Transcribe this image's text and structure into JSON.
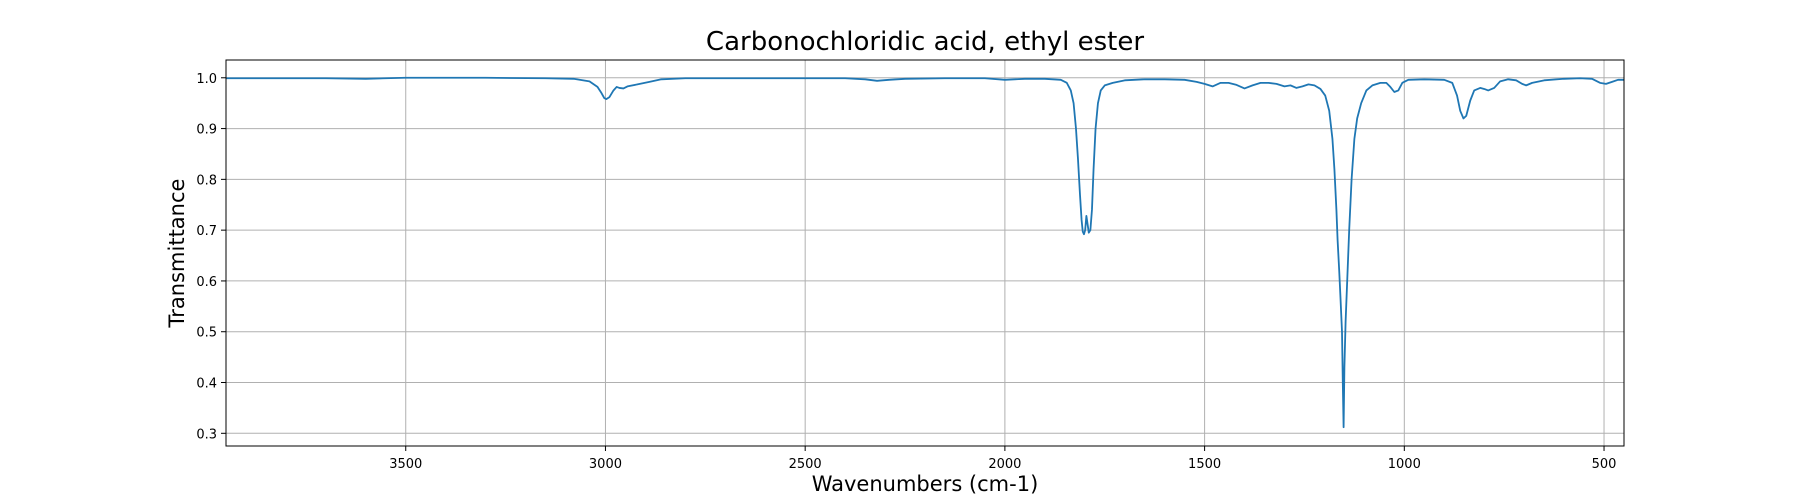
{
  "chart_data": {
    "type": "line",
    "title": "Carbonochloridic acid, ethyl ester",
    "xlabel": "Wavenumbers (cm-1)",
    "ylabel": "Transmittance",
    "x_reversed": true,
    "xlim": [
      3950,
      450
    ],
    "ylim": [
      0.275,
      1.035
    ],
    "x_ticks": [
      3500,
      3000,
      2500,
      2000,
      1500,
      1000,
      500
    ],
    "y_ticks": [
      0.3,
      0.4,
      0.5,
      0.6,
      0.7,
      0.8,
      0.9,
      1.0
    ],
    "x_tick_labels": [
      "3500",
      "3000",
      "2500",
      "2000",
      "1500",
      "1000",
      "500"
    ],
    "y_tick_labels": [
      "0.3",
      "0.4",
      "0.5",
      "0.6",
      "0.7",
      "0.8",
      "0.9",
      "1.0"
    ],
    "grid": true,
    "legend": "none",
    "colors": {
      "series": "#1f77b4"
    },
    "series": [
      {
        "points": [
          [
            3950,
            0.999
          ],
          [
            3800,
            0.999
          ],
          [
            3700,
            0.999
          ],
          [
            3600,
            0.998
          ],
          [
            3550,
            0.999
          ],
          [
            3500,
            1.0
          ],
          [
            3300,
            1.0
          ],
          [
            3150,
            0.999
          ],
          [
            3080,
            0.998
          ],
          [
            3040,
            0.993
          ],
          [
            3020,
            0.982
          ],
          [
            3010,
            0.97
          ],
          [
            3003,
            0.96
          ],
          [
            2998,
            0.958
          ],
          [
            2990,
            0.962
          ],
          [
            2980,
            0.975
          ],
          [
            2972,
            0.982
          ],
          [
            2965,
            0.98
          ],
          [
            2955,
            0.979
          ],
          [
            2945,
            0.983
          ],
          [
            2920,
            0.987
          ],
          [
            2890,
            0.992
          ],
          [
            2860,
            0.997
          ],
          [
            2800,
            0.999
          ],
          [
            2600,
            0.999
          ],
          [
            2400,
            0.999
          ],
          [
            2350,
            0.997
          ],
          [
            2320,
            0.994
          ],
          [
            2290,
            0.996
          ],
          [
            2250,
            0.998
          ],
          [
            2150,
            0.999
          ],
          [
            2050,
            0.999
          ],
          [
            2000,
            0.996
          ],
          [
            1950,
            0.998
          ],
          [
            1900,
            0.998
          ],
          [
            1860,
            0.996
          ],
          [
            1845,
            0.99
          ],
          [
            1835,
            0.975
          ],
          [
            1828,
            0.95
          ],
          [
            1822,
            0.9
          ],
          [
            1817,
            0.84
          ],
          [
            1812,
            0.77
          ],
          [
            1808,
            0.72
          ],
          [
            1805,
            0.697
          ],
          [
            1802,
            0.692
          ],
          [
            1799,
            0.7
          ],
          [
            1796,
            0.728
          ],
          [
            1793,
            0.712
          ],
          [
            1790,
            0.695
          ],
          [
            1786,
            0.7
          ],
          [
            1782,
            0.74
          ],
          [
            1778,
            0.82
          ],
          [
            1773,
            0.9
          ],
          [
            1767,
            0.95
          ],
          [
            1760,
            0.975
          ],
          [
            1750,
            0.985
          ],
          [
            1730,
            0.99
          ],
          [
            1700,
            0.995
          ],
          [
            1650,
            0.997
          ],
          [
            1600,
            0.997
          ],
          [
            1550,
            0.996
          ],
          [
            1520,
            0.992
          ],
          [
            1500,
            0.988
          ],
          [
            1480,
            0.983
          ],
          [
            1460,
            0.99
          ],
          [
            1440,
            0.99
          ],
          [
            1420,
            0.986
          ],
          [
            1400,
            0.979
          ],
          [
            1380,
            0.985
          ],
          [
            1360,
            0.99
          ],
          [
            1340,
            0.99
          ],
          [
            1320,
            0.988
          ],
          [
            1300,
            0.983
          ],
          [
            1285,
            0.985
          ],
          [
            1270,
            0.98
          ],
          [
            1255,
            0.983
          ],
          [
            1240,
            0.987
          ],
          [
            1225,
            0.985
          ],
          [
            1210,
            0.978
          ],
          [
            1198,
            0.965
          ],
          [
            1188,
            0.935
          ],
          [
            1180,
            0.88
          ],
          [
            1175,
            0.82
          ],
          [
            1170,
            0.74
          ],
          [
            1167,
            0.68
          ],
          [
            1163,
            0.62
          ],
          [
            1160,
            0.57
          ],
          [
            1156,
            0.5
          ],
          [
            1154,
            0.4
          ],
          [
            1152,
            0.312
          ],
          [
            1150,
            0.43
          ],
          [
            1147,
            0.52
          ],
          [
            1143,
            0.6
          ],
          [
            1138,
            0.7
          ],
          [
            1132,
            0.8
          ],
          [
            1125,
            0.88
          ],
          [
            1118,
            0.92
          ],
          [
            1108,
            0.95
          ],
          [
            1095,
            0.975
          ],
          [
            1080,
            0.985
          ],
          [
            1060,
            0.99
          ],
          [
            1045,
            0.99
          ],
          [
            1035,
            0.982
          ],
          [
            1025,
            0.972
          ],
          [
            1015,
            0.975
          ],
          [
            1005,
            0.99
          ],
          [
            990,
            0.996
          ],
          [
            950,
            0.997
          ],
          [
            900,
            0.996
          ],
          [
            880,
            0.99
          ],
          [
            868,
            0.965
          ],
          [
            860,
            0.935
          ],
          [
            852,
            0.92
          ],
          [
            845,
            0.925
          ],
          [
            835,
            0.955
          ],
          [
            825,
            0.975
          ],
          [
            810,
            0.98
          ],
          [
            800,
            0.978
          ],
          [
            790,
            0.975
          ],
          [
            775,
            0.98
          ],
          [
            760,
            0.993
          ],
          [
            740,
            0.997
          ],
          [
            720,
            0.995
          ],
          [
            705,
            0.988
          ],
          [
            695,
            0.985
          ],
          [
            680,
            0.99
          ],
          [
            650,
            0.995
          ],
          [
            600,
            0.998
          ],
          [
            560,
            0.999
          ],
          [
            530,
            0.998
          ],
          [
            510,
            0.99
          ],
          [
            495,
            0.988
          ],
          [
            480,
            0.992
          ],
          [
            465,
            0.996
          ],
          [
            450,
            0.996
          ]
        ]
      }
    ]
  }
}
